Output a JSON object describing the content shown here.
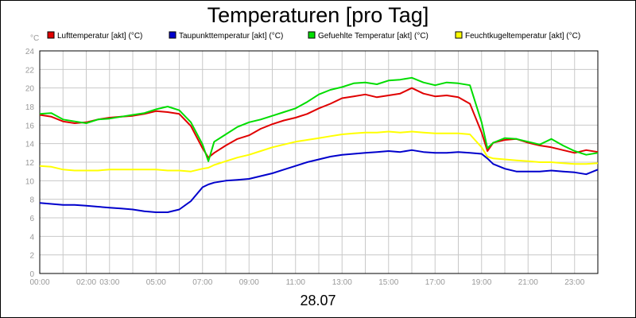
{
  "chart_data": {
    "type": "line",
    "title": "Temperaturen [pro Tag]",
    "ylabel": "°C",
    "xlabel": "28.07",
    "xlim": [
      0,
      24
    ],
    "ylim": [
      0,
      24
    ],
    "grid": true,
    "legend_position": "top",
    "x_tick_labels": [
      {
        "t": 0,
        "label": "00:00"
      },
      {
        "t": 2,
        "label": "02:00"
      },
      {
        "t": 3,
        "label": "03:00"
      },
      {
        "t": 5,
        "label": "05:00"
      },
      {
        "t": 7,
        "label": "07:00"
      },
      {
        "t": 9,
        "label": "09:00"
      },
      {
        "t": 11,
        "label": "11:00"
      },
      {
        "t": 13,
        "label": "13:00"
      },
      {
        "t": 15,
        "label": "15:00"
      },
      {
        "t": 17,
        "label": "17:00"
      },
      {
        "t": 19,
        "label": "19:00"
      },
      {
        "t": 21,
        "label": "21:00"
      },
      {
        "t": 23,
        "label": "23:00"
      }
    ],
    "y_ticks": [
      0,
      2,
      4,
      6,
      8,
      10,
      12,
      14,
      16,
      18,
      20,
      22,
      24
    ],
    "x": [
      0,
      0.5,
      1,
      1.5,
      2,
      2.5,
      3,
      3.5,
      4,
      4.5,
      5,
      5.5,
      6,
      6.5,
      7,
      7.25,
      7.5,
      8,
      8.5,
      9,
      9.5,
      10,
      10.5,
      11,
      11.5,
      12,
      12.5,
      13,
      13.5,
      14,
      14.5,
      15,
      15.5,
      16,
      16.5,
      17,
      17.5,
      18,
      18.5,
      19,
      19.25,
      19.5,
      20,
      20.5,
      21,
      21.5,
      22,
      22.5,
      23,
      23.5,
      24
    ],
    "series": [
      {
        "name": "Lufttemperatur [akt] (°C)",
        "color": "#e00000",
        "values": [
          17.1,
          16.9,
          16.4,
          16.2,
          16.3,
          16.6,
          16.8,
          16.9,
          17.0,
          17.2,
          17.5,
          17.4,
          17.2,
          15.9,
          13.5,
          12.5,
          13.0,
          13.8,
          14.5,
          14.9,
          15.6,
          16.1,
          16.5,
          16.8,
          17.2,
          17.8,
          18.3,
          18.9,
          19.1,
          19.3,
          19.0,
          19.2,
          19.4,
          20.0,
          19.4,
          19.1,
          19.2,
          19.0,
          18.3,
          15.2,
          13.2,
          14.1,
          14.4,
          14.5,
          14.1,
          13.8,
          13.6,
          13.3,
          13.0,
          13.3,
          13.1
        ]
      },
      {
        "name": "Taupunkttemperatur [akt] (°C)",
        "color": "#0000cc",
        "values": [
          7.6,
          7.5,
          7.4,
          7.4,
          7.3,
          7.2,
          7.1,
          7.0,
          6.9,
          6.7,
          6.6,
          6.6,
          6.9,
          7.8,
          9.3,
          9.6,
          9.8,
          10.0,
          10.1,
          10.2,
          10.5,
          10.8,
          11.2,
          11.6,
          12.0,
          12.3,
          12.6,
          12.8,
          12.9,
          13.0,
          13.1,
          13.2,
          13.1,
          13.3,
          13.1,
          13.0,
          13.0,
          13.1,
          13.0,
          12.9,
          12.4,
          11.8,
          11.3,
          11.0,
          11.0,
          11.0,
          11.1,
          11.0,
          10.9,
          10.7,
          11.2
        ]
      },
      {
        "name": "Gefuehlte Temperatur [akt] (°C)",
        "color": "#00dd00",
        "values": [
          17.2,
          17.3,
          16.6,
          16.4,
          16.2,
          16.6,
          16.7,
          16.9,
          17.1,
          17.3,
          17.7,
          18.0,
          17.6,
          16.3,
          13.9,
          12.1,
          14.2,
          15.0,
          15.8,
          16.3,
          16.6,
          17.0,
          17.4,
          17.8,
          18.5,
          19.3,
          19.8,
          20.1,
          20.5,
          20.6,
          20.4,
          20.8,
          20.9,
          21.1,
          20.6,
          20.3,
          20.6,
          20.5,
          20.3,
          16.3,
          13.5,
          14.1,
          14.6,
          14.5,
          14.2,
          13.9,
          14.5,
          13.8,
          13.2,
          12.8,
          13.0
        ]
      },
      {
        "name": "Feuchtkugeltemperatur [akt] (°C)",
        "color": "#ffff00",
        "values": [
          11.6,
          11.5,
          11.2,
          11.1,
          11.1,
          11.1,
          11.2,
          11.2,
          11.2,
          11.2,
          11.2,
          11.1,
          11.1,
          11.0,
          11.3,
          11.4,
          11.7,
          12.1,
          12.5,
          12.8,
          13.2,
          13.6,
          13.9,
          14.2,
          14.4,
          14.6,
          14.8,
          15.0,
          15.1,
          15.2,
          15.2,
          15.3,
          15.2,
          15.3,
          15.2,
          15.1,
          15.1,
          15.1,
          15.0,
          13.6,
          12.6,
          12.4,
          12.3,
          12.2,
          12.1,
          12.0,
          12.0,
          11.9,
          11.8,
          11.8,
          11.9
        ]
      }
    ]
  }
}
